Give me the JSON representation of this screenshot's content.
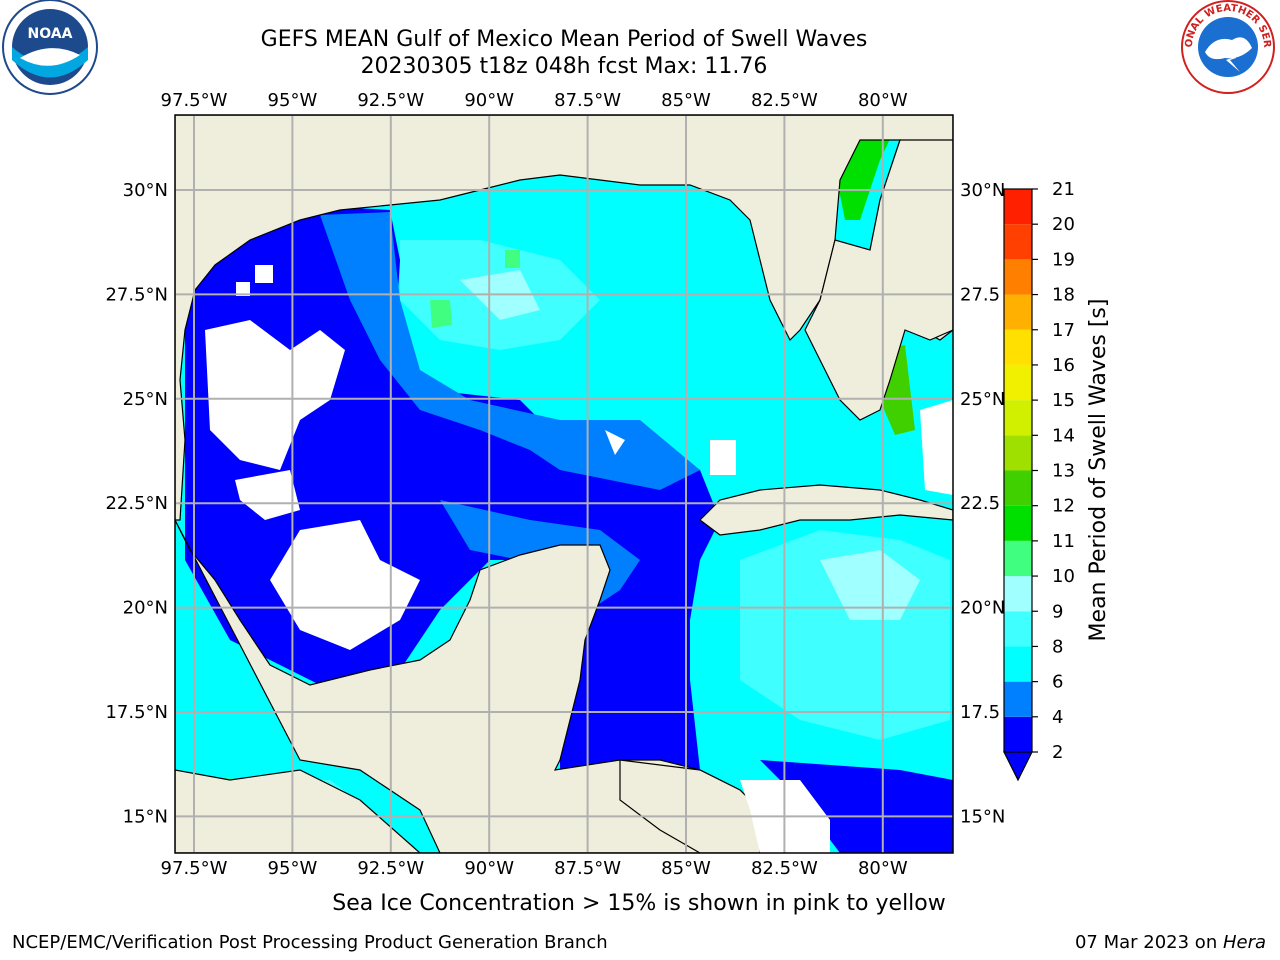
{
  "title": {
    "line1": "GEFS MEAN Gulf of Mexico Mean Period of Swell Waves",
    "line2": "20230305 t18z 048h fcst   Max: 11.76"
  },
  "map": {
    "lon_ticks": [
      "97.5°W",
      "95°W",
      "92.5°W",
      "90°W",
      "87.5°W",
      "85°W",
      "82.5°W",
      "80°W"
    ],
    "lat_ticks_left": [
      "30°N",
      "27.5°N",
      "25°N",
      "22.5°N",
      "20°N",
      "17.5°N",
      "15°N"
    ],
    "lat_ticks_right": [
      "30°N",
      "27.5",
      "25°N",
      "22.5",
      "20°N",
      "17.5",
      "15°N"
    ],
    "land_color": "#efeedd",
    "grid_color": "#b0b0b0"
  },
  "colorbar": {
    "label": "Mean Period of Swell Waves [s]",
    "ticks": [
      "2",
      "4",
      "6",
      "8",
      "9",
      "10",
      "11",
      "12",
      "13",
      "14",
      "15",
      "16",
      "17",
      "18",
      "19",
      "20",
      "21"
    ],
    "colors": [
      "#0000ff",
      "#0080ff",
      "#00ffff",
      "#40ffff",
      "#a0ffff",
      "#40ff80",
      "#00e000",
      "#40d000",
      "#a0e000",
      "#d0f000",
      "#f0f000",
      "#ffe000",
      "#ffb000",
      "#ff8000",
      "#ff4000",
      "#ff2000",
      "#ff0000"
    ]
  },
  "note": "Sea Ice Concentration > 15% is shown in pink to yellow",
  "footer": {
    "left": "NCEP/EMC/Verification Post Processing Product Generation Branch",
    "right_prefix": "07 Mar 2023 on ",
    "right_italic": "Hera"
  },
  "logos": {
    "noaa": "NOAA",
    "nws": "NATIONAL WEATHER SERVICE"
  }
}
